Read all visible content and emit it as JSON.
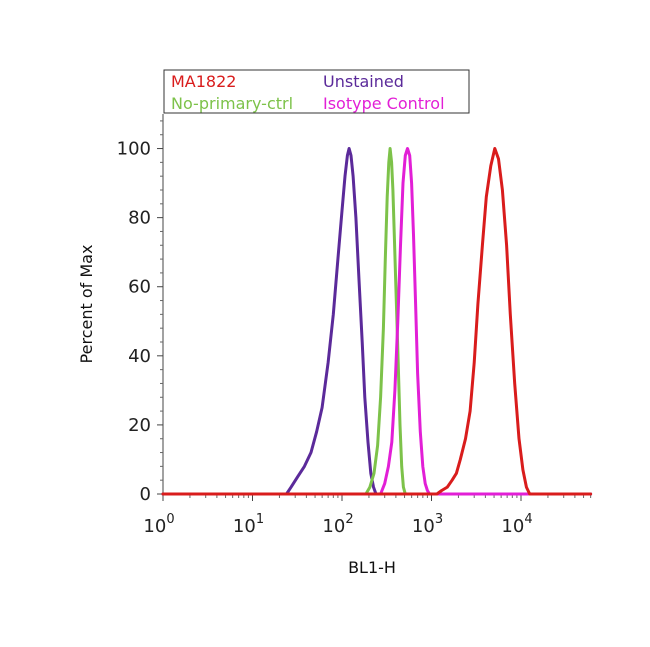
{
  "chart_data": {
    "type": "line",
    "xlabel": "BL1-H",
    "ylabel": "Percent of Max",
    "xscale": "log",
    "xlim": [
      1,
      60000
    ],
    "ylim": [
      0,
      110
    ],
    "yticks": [
      0,
      20,
      40,
      60,
      80,
      100
    ],
    "xticks": [
      {
        "value": 1,
        "base": "10",
        "exp": "0"
      },
      {
        "value": 10,
        "base": "10",
        "exp": "1"
      },
      {
        "value": 100,
        "base": "10",
        "exp": "2"
      },
      {
        "value": 1000,
        "base": "10",
        "exp": "3"
      },
      {
        "value": 10000,
        "base": "10",
        "exp": "4"
      }
    ],
    "grid": false,
    "legend_position": "top",
    "series": [
      {
        "name": "Unstained",
        "color": "#5B2A9A",
        "points": [
          [
            1,
            0
          ],
          [
            24,
            0
          ],
          [
            27,
            2
          ],
          [
            32,
            5
          ],
          [
            38,
            8
          ],
          [
            45,
            12
          ],
          [
            52,
            18
          ],
          [
            60,
            25
          ],
          [
            70,
            38
          ],
          [
            80,
            52
          ],
          [
            90,
            68
          ],
          [
            100,
            82
          ],
          [
            108,
            92
          ],
          [
            115,
            98
          ],
          [
            120,
            100
          ],
          [
            126,
            98
          ],
          [
            133,
            92
          ],
          [
            143,
            80
          ],
          [
            155,
            62
          ],
          [
            168,
            44
          ],
          [
            180,
            28
          ],
          [
            195,
            15
          ],
          [
            210,
            6
          ],
          [
            225,
            2
          ],
          [
            240,
            0
          ],
          [
            60000,
            0
          ]
        ]
      },
      {
        "name": "No-primary-ctrl",
        "color": "#7DC24A",
        "points": [
          [
            1,
            0
          ],
          [
            185,
            0
          ],
          [
            205,
            2
          ],
          [
            228,
            6
          ],
          [
            250,
            14
          ],
          [
            270,
            28
          ],
          [
            290,
            48
          ],
          [
            305,
            68
          ],
          [
            320,
            86
          ],
          [
            333,
            96
          ],
          [
            345,
            100
          ],
          [
            358,
            96
          ],
          [
            370,
            88
          ],
          [
            385,
            74
          ],
          [
            405,
            55
          ],
          [
            425,
            38
          ],
          [
            445,
            20
          ],
          [
            465,
            8
          ],
          [
            485,
            2
          ],
          [
            510,
            0
          ],
          [
            60000,
            0
          ]
        ]
      },
      {
        "name": "Isotype Control",
        "color": "#E21FD6",
        "points": [
          [
            1,
            0
          ],
          [
            270,
            0
          ],
          [
            300,
            3
          ],
          [
            330,
            8
          ],
          [
            360,
            15
          ],
          [
            390,
            30
          ],
          [
            420,
            50
          ],
          [
            450,
            72
          ],
          [
            480,
            90
          ],
          [
            510,
            98
          ],
          [
            540,
            100
          ],
          [
            570,
            98
          ],
          [
            600,
            90
          ],
          [
            630,
            75
          ],
          [
            665,
            55
          ],
          [
            700,
            35
          ],
          [
            750,
            18
          ],
          [
            800,
            8
          ],
          [
            850,
            3
          ],
          [
            900,
            1
          ],
          [
            950,
            0
          ],
          [
            60000,
            0
          ]
        ]
      },
      {
        "name": "MA1822",
        "color": "#D91C1C",
        "points": [
          [
            1,
            0
          ],
          [
            1150,
            0
          ],
          [
            1300,
            1
          ],
          [
            1500,
            2
          ],
          [
            1700,
            4
          ],
          [
            1900,
            6
          ],
          [
            2100,
            10
          ],
          [
            2400,
            16
          ],
          [
            2700,
            24
          ],
          [
            3000,
            38
          ],
          [
            3300,
            55
          ],
          [
            3700,
            72
          ],
          [
            4100,
            86
          ],
          [
            4600,
            95
          ],
          [
            5100,
            100
          ],
          [
            5600,
            97
          ],
          [
            6200,
            88
          ],
          [
            6900,
            72
          ],
          [
            7600,
            52
          ],
          [
            8500,
            32
          ],
          [
            9500,
            16
          ],
          [
            10500,
            7
          ],
          [
            11500,
            2
          ],
          [
            12500,
            0
          ],
          [
            60000,
            0
          ]
        ]
      }
    ]
  },
  "legend": {
    "items": [
      {
        "label": "MA1822",
        "color": "#D91C1C"
      },
      {
        "label": "Unstained",
        "color": "#5B2A9A"
      },
      {
        "label": "No-primary-ctrl",
        "color": "#7DC24A"
      },
      {
        "label": "Isotype Control",
        "color": "#E21FD6"
      }
    ]
  }
}
